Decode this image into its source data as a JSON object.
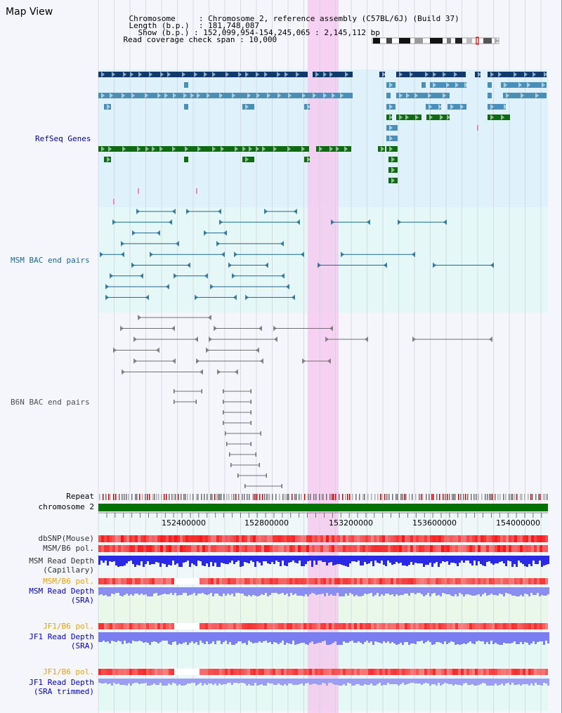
{
  "view_title": "Map View",
  "info": {
    "chromosome_label": "Chromosome",
    "chromosome_value": "Chromosome 2, reference assembly (C57BL/6J) (Build 37)",
    "length_label": "Length (b.p.)",
    "length_value": "181,748,087",
    "show_label": "Show (b.p.)",
    "show_value": "152,099,954-154,245,065 : 2,145,112 bp",
    "coverage_label": "Read coverage check span",
    "coverage_value": "10,000"
  },
  "tracks": {
    "refseq": "RefSeq Genes",
    "msm_bac": "MSM BAC end pairs",
    "b6n_bac": "B6N BAC end pairs"
  },
  "axis": {
    "repeat_label": "Repeat",
    "chromosome_label": "chromosome 2",
    "ticks": [
      "152400000",
      "152800000",
      "153200000",
      "153600000",
      "154000000"
    ]
  },
  "data_tracks": {
    "dbsnp": "dbSNP(Mouse)",
    "msm_b6_pol_1": "MSM/B6 pol.",
    "msm_read_depth_cap_1": "MSM Read Depth",
    "msm_read_depth_cap_2": "(Capillary)",
    "msm_b6_pol_2": "MSM/B6 pol.",
    "msm_read_depth_sra_1": "MSM Read Depth",
    "msm_read_depth_sra_2": "(SRA)",
    "jf1_b6_pol_1": "JF1/B6 pol.",
    "jf1_read_depth_sra_1": "JF1 Read Depth",
    "jf1_read_depth_sra_2": "(SRA)",
    "jf1_b6_pol_2": "JF1/B6 pol.",
    "jf1_read_depth_trim_1": "JF1 Read Depth",
    "jf1_read_depth_trim_2": "(SRA trimmed)"
  },
  "colors": {
    "refseq_bg": "#dff2fb",
    "msm_bg": "#e6f7f8",
    "highlight": "#f7d4f2",
    "gene_dark": "#0e3a6e",
    "gene_mid": "#4a8fb8",
    "gene_green": "#0e6b12",
    "bac_msm": "#1a6a94",
    "bac_b6n": "#707070",
    "chromosome_bar": "#037103",
    "orange_label": "#f0a000",
    "navy_label": "#0000c8"
  }
}
